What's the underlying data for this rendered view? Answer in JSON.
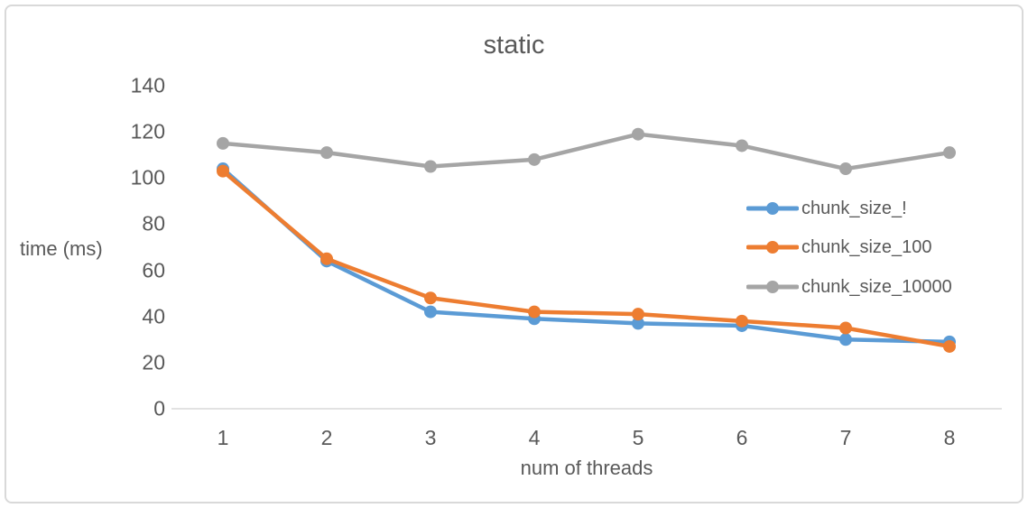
{
  "chart_data": {
    "type": "line",
    "title": "static",
    "xlabel": "num of threads",
    "ylabel": "time (ms)",
    "x": [
      1,
      2,
      3,
      4,
      5,
      6,
      7,
      8
    ],
    "yticks": [
      0,
      20,
      40,
      60,
      80,
      100,
      120,
      140
    ],
    "ylim": [
      0,
      140
    ],
    "grid": false,
    "legend_position": "middle-right",
    "series": [
      {
        "name": "chunk_size_!",
        "color": "#5B9BD5",
        "values": [
          104,
          64,
          42,
          39,
          37,
          36,
          30,
          29
        ]
      },
      {
        "name": "chunk_size_100",
        "color": "#ED7D31",
        "values": [
          103,
          65,
          48,
          42,
          41,
          38,
          35,
          27
        ]
      },
      {
        "name": "chunk_size_10000",
        "color": "#A5A5A5",
        "values": [
          115,
          111,
          105,
          108,
          119,
          114,
          104,
          111
        ]
      }
    ]
  },
  "colors": {
    "text": "#595959",
    "axis_line": "#D9D9D9",
    "border": "#D9D9D9",
    "background": "#FFFFFF"
  }
}
